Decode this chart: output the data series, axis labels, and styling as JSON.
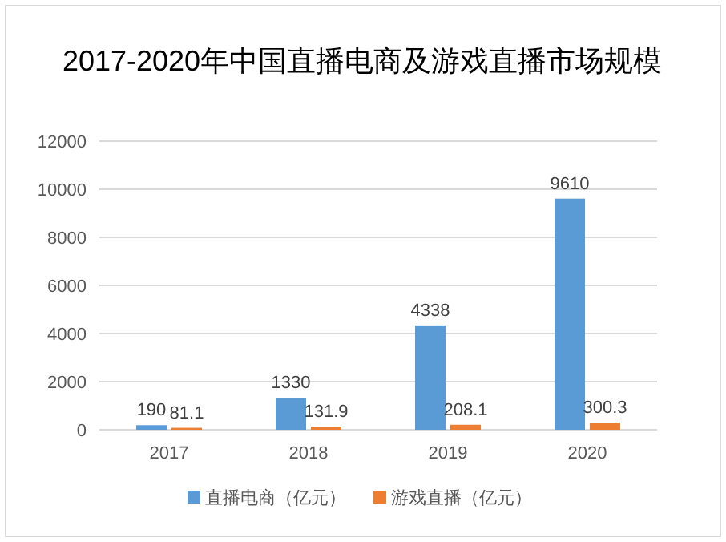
{
  "chart_data": {
    "type": "bar",
    "title": "2017-2020年中国直播电商及游戏直播市场规模",
    "categories": [
      "2017",
      "2018",
      "2019",
      "2020"
    ],
    "series": [
      {
        "name": "直播电商（亿元）",
        "color": "#5b9bd5",
        "values": [
          190,
          1330,
          4338,
          9610
        ]
      },
      {
        "name": "游戏直播（亿元）",
        "color": "#ed7d31",
        "values": [
          81.1,
          131.9,
          208.1,
          300.3
        ]
      }
    ],
    "ylim": [
      0,
      12000
    ],
    "yticks": [
      0,
      2000,
      4000,
      6000,
      8000,
      10000,
      12000
    ],
    "grid": "y",
    "legend": "bottom",
    "data_labels": true
  }
}
